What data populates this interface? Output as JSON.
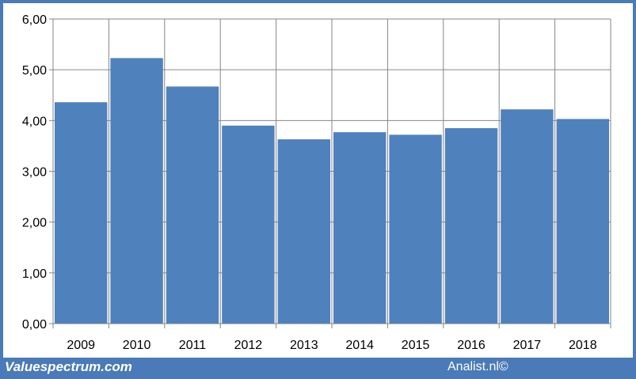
{
  "chart_data": {
    "type": "bar",
    "categories": [
      "2009",
      "2010",
      "2011",
      "2012",
      "2013",
      "2014",
      "2015",
      "2016",
      "2017",
      "2018"
    ],
    "values": [
      4.36,
      5.23,
      4.67,
      3.9,
      3.63,
      3.77,
      3.72,
      3.85,
      4.22,
      4.03
    ],
    "yticks": [
      "0,00",
      "1,00",
      "2,00",
      "3,00",
      "4,00",
      "5,00",
      "6,00"
    ],
    "ylim": [
      0,
      6
    ],
    "grid": true,
    "colors": {
      "bar": "#4f81bd",
      "background": "#4a7ab8",
      "grid": "#868686"
    }
  },
  "footer": {
    "left_text": "Valuespectrum.com",
    "right_text": "Analist.nl©"
  }
}
